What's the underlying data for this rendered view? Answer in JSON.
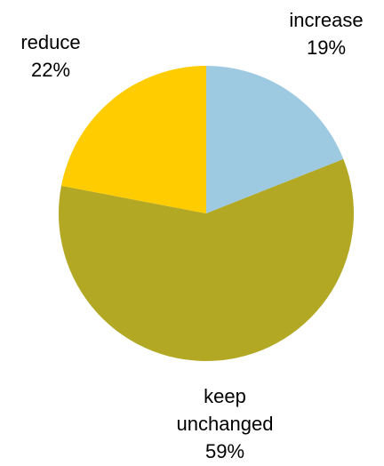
{
  "chart_data": {
    "type": "pie",
    "slices": [
      {
        "name": "increase",
        "value": 19,
        "label_lines": [
          "increase",
          "19%"
        ],
        "color": "#9ECAE1"
      },
      {
        "name": "keep unchanged",
        "value": 59,
        "label_lines": [
          "keep",
          "unchanged",
          "59%"
        ],
        "color": "#B2A824"
      },
      {
        "name": "reduce",
        "value": 22,
        "label_lines": [
          "reduce",
          "22%"
        ],
        "color": "#FFCC00"
      }
    ],
    "start_angle": "12 o'clock, clockwise",
    "legend": "none"
  }
}
